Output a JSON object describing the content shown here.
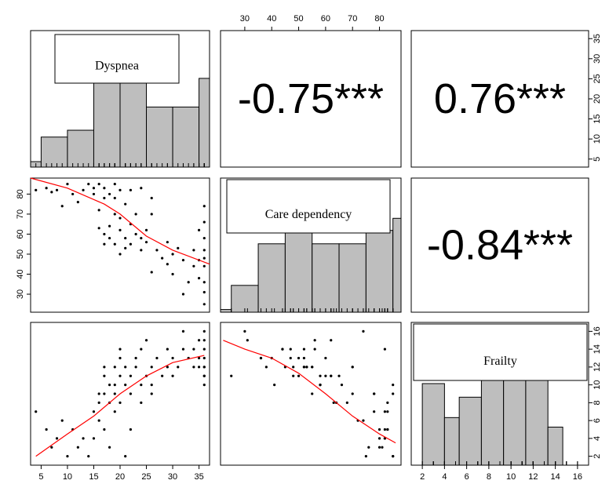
{
  "chart_data": {
    "type": "scatter",
    "variables": [
      "Dyspnea",
      "Care dependency",
      "Frailty"
    ],
    "correlations": [
      {
        "vars": [
          "Dyspnea",
          "Care dependency"
        ],
        "label": "-0.75***"
      },
      {
        "vars": [
          "Dyspnea",
          "Frailty"
        ],
        "label": "0.76***"
      },
      {
        "vars": [
          "Care dependency",
          "Frailty"
        ],
        "label": "-0.84***"
      }
    ],
    "axes": {
      "dyspnea": {
        "lim": [
          3,
          37
        ],
        "ticks": [
          "5",
          "10",
          "15",
          "20",
          "25",
          "30",
          "35"
        ]
      },
      "care": {
        "lim": [
          21,
          88
        ],
        "ticks": [
          "30",
          "40",
          "50",
          "60",
          "70",
          "80"
        ]
      },
      "frailty": {
        "lim": [
          1,
          17
        ],
        "ticks": [
          "2",
          "4",
          "6",
          "8",
          "10",
          "12",
          "14",
          "16"
        ]
      }
    },
    "histograms": {
      "dyspnea": {
        "breaks": [
          3,
          5,
          10,
          15,
          20,
          25,
          30,
          35,
          37
        ],
        "heights": [
          0.4,
          2.2,
          2.7,
          8.4,
          7.4,
          4.4,
          4.4,
          6.5
        ],
        "ymax": 10
      },
      "care": {
        "breaks": [
          21,
          25,
          35,
          45,
          55,
          65,
          75,
          85,
          88
        ],
        "heights": [
          0.2,
          2.0,
          5.1,
          7.8,
          5.1,
          5.1,
          6.1,
          7.0
        ],
        "ymax": 10
      },
      "frailty": {
        "breaks": [
          2,
          4,
          5.33,
          7.33,
          9.33,
          11.33,
          13.33,
          14.67,
          16
        ],
        "heights": [
          0.6,
          0.35,
          0.5,
          0.7,
          0.74,
          0.7,
          0.28,
          0
        ],
        "ymax": 1.05
      }
    },
    "points": [
      {
        "d": 4,
        "c": 82,
        "f": 7
      },
      {
        "d": 6,
        "c": 83,
        "f": 5
      },
      {
        "d": 7,
        "c": 81,
        "f": 3
      },
      {
        "d": 8,
        "c": 82,
        "f": 4
      },
      {
        "d": 9,
        "c": 74,
        "f": 6
      },
      {
        "d": 10,
        "c": 85,
        "f": 2
      },
      {
        "d": 11,
        "c": 80,
        "f": 5
      },
      {
        "d": 12,
        "c": 76,
        "f": 3
      },
      {
        "d": 13,
        "c": 82,
        "f": 4
      },
      {
        "d": 14,
        "c": 85,
        "f": 2
      },
      {
        "d": 15,
        "c": 83,
        "f": 7
      },
      {
        "d": 15,
        "c": 80,
        "f": 4
      },
      {
        "d": 16,
        "c": 85,
        "f": 9
      },
      {
        "d": 16,
        "c": 72,
        "f": 6
      },
      {
        "d": 16,
        "c": 63,
        "f": 8
      },
      {
        "d": 17,
        "c": 55,
        "f": 12
      },
      {
        "d": 17,
        "c": 83,
        "f": 5
      },
      {
        "d": 17,
        "c": 78,
        "f": 9
      },
      {
        "d": 17,
        "c": 60,
        "f": 11
      },
      {
        "d": 18,
        "c": 80,
        "f": 3
      },
      {
        "d": 18,
        "c": 64,
        "f": 8
      },
      {
        "d": 18,
        "c": 58,
        "f": 10
      },
      {
        "d": 19,
        "c": 85,
        "f": 10
      },
      {
        "d": 19,
        "c": 78,
        "f": 7
      },
      {
        "d": 19,
        "c": 70,
        "f": 9
      },
      {
        "d": 19,
        "c": 55,
        "f": 12
      },
      {
        "d": 20,
        "c": 82,
        "f": 14
      },
      {
        "d": 20,
        "c": 68,
        "f": 8
      },
      {
        "d": 20,
        "c": 62,
        "f": 11
      },
      {
        "d": 20,
        "c": 50,
        "f": 13
      },
      {
        "d": 21,
        "c": 75,
        "f": 2
      },
      {
        "d": 21,
        "c": 58,
        "f": 10
      },
      {
        "d": 21,
        "c": 53,
        "f": 12
      },
      {
        "d": 22,
        "c": 82,
        "f": 5
      },
      {
        "d": 22,
        "c": 65,
        "f": 11
      },
      {
        "d": 22,
        "c": 55,
        "f": 9
      },
      {
        "d": 23,
        "c": 70,
        "f": 12
      },
      {
        "d": 23,
        "c": 60,
        "f": 13
      },
      {
        "d": 24,
        "c": 83,
        "f": 8
      },
      {
        "d": 24,
        "c": 58,
        "f": 10
      },
      {
        "d": 24,
        "c": 52,
        "f": 14
      },
      {
        "d": 25,
        "c": 62,
        "f": 11
      },
      {
        "d": 25,
        "c": 56,
        "f": 15
      },
      {
        "d": 26,
        "c": 70,
        "f": 12
      },
      {
        "d": 26,
        "c": 78,
        "f": 9
      },
      {
        "d": 26,
        "c": 41,
        "f": 10
      },
      {
        "d": 27,
        "c": 52,
        "f": 13
      },
      {
        "d": 28,
        "c": 48,
        "f": 11
      },
      {
        "d": 29,
        "c": 45,
        "f": 12
      },
      {
        "d": 29,
        "c": 56,
        "f": 14
      },
      {
        "d": 30,
        "c": 40,
        "f": 13
      },
      {
        "d": 30,
        "c": 50,
        "f": 11
      },
      {
        "d": 31,
        "c": 53,
        "f": 12
      },
      {
        "d": 32,
        "c": 30,
        "f": 16
      },
      {
        "d": 32,
        "c": 47,
        "f": 14
      },
      {
        "d": 33,
        "c": 36,
        "f": 13
      },
      {
        "d": 34,
        "c": 52,
        "f": 12
      },
      {
        "d": 34,
        "c": 44,
        "f": 14
      },
      {
        "d": 35,
        "c": 62,
        "f": 15
      },
      {
        "d": 35,
        "c": 47,
        "f": 13
      },
      {
        "d": 35,
        "c": 38,
        "f": 12
      },
      {
        "d": 36,
        "c": 74,
        "f": 16
      },
      {
        "d": 36,
        "c": 66,
        "f": 10
      },
      {
        "d": 36,
        "c": 58,
        "f": 11
      },
      {
        "d": 36,
        "c": 52,
        "f": 12
      },
      {
        "d": 36,
        "c": 44,
        "f": 14
      },
      {
        "d": 36,
        "c": 36,
        "f": 13
      },
      {
        "d": 36,
        "c": 31,
        "f": 15
      },
      {
        "d": 36,
        "c": 25,
        "f": 11
      },
      {
        "d": 36,
        "c": 48,
        "f": 12
      }
    ],
    "smooth_dc": [
      [
        3,
        88
      ],
      [
        10,
        83
      ],
      [
        17,
        75
      ],
      [
        20,
        70
      ],
      [
        25,
        59
      ],
      [
        30,
        52
      ],
      [
        37,
        45
      ]
    ],
    "smooth_df": [
      [
        4,
        2
      ],
      [
        10,
        4.5
      ],
      [
        15,
        6.5
      ],
      [
        20,
        9
      ],
      [
        25,
        11
      ],
      [
        30,
        12.5
      ],
      [
        36,
        13.3
      ]
    ],
    "smooth_cf": [
      [
        22,
        15
      ],
      [
        30,
        14
      ],
      [
        40,
        13
      ],
      [
        50,
        11.3
      ],
      [
        60,
        9
      ],
      [
        70,
        6.5
      ],
      [
        80,
        4.5
      ],
      [
        86,
        3.5
      ]
    ],
    "grid": false,
    "legend": "none"
  }
}
